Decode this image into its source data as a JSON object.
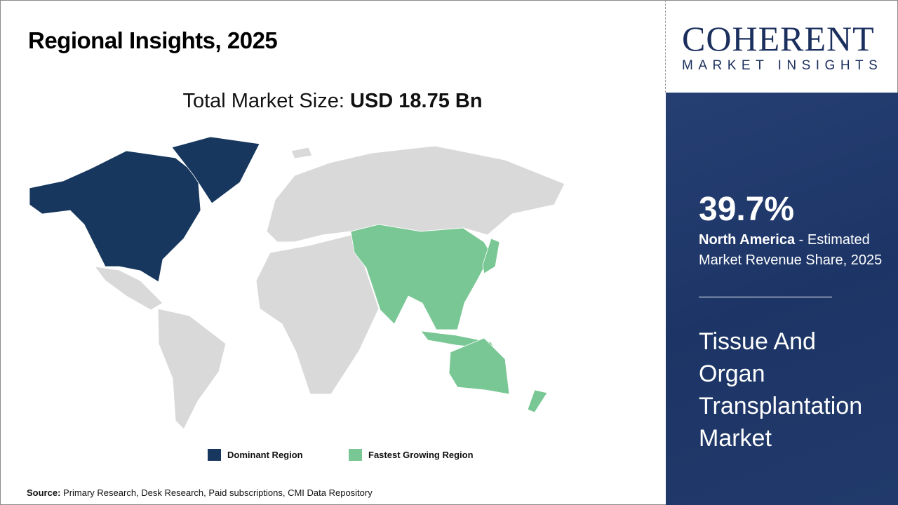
{
  "header": {
    "title": "Regional Insights, 2025",
    "total_label": "Total Market Size: ",
    "total_value": "USD 18.75 Bn"
  },
  "logo": {
    "name": "COHERENT",
    "tagline": "MARKET INSIGHTS"
  },
  "panel": {
    "share": "39.7%",
    "region": "North America",
    "share_desc": " - Estimated Market Revenue Share, 2025",
    "market": "Tissue And Organ Transplantation Market"
  },
  "legend": [
    {
      "label": "Dominant Region",
      "color": "#17375e"
    },
    {
      "label": "Fastest Growing Region",
      "color": "#79c794"
    }
  ],
  "map": {
    "dominant_region": "North America",
    "fastest_growing_region": "Asia Pacific",
    "other_color": "#d9d9d9"
  },
  "source": {
    "label": "Source:",
    "text": " Primary Research, Desk Research, Paid subscriptions, CMI Data Repository"
  }
}
